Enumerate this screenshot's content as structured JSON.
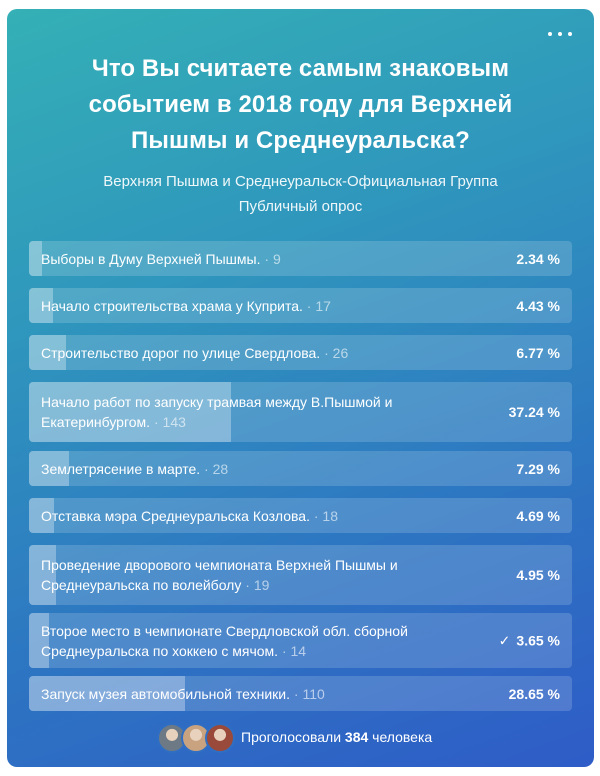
{
  "poll": {
    "title": "Что Вы считаете самым знаковым\nсобытием в 2018 году для Верхней\nПышмы и Среднеуральска?",
    "author": "Верхняя Пышма и Среднеуральск-Официальная Группа",
    "type": "Публичный опрос",
    "menu_icon": "more-dots-icon",
    "options": [
      {
        "text": "Выборы в Думу Верхней Пышмы.",
        "count": "9",
        "percent": "2.34 %",
        "fraction": 0.0234,
        "checked": false
      },
      {
        "text": "Начало строительства храма у Куприта.",
        "count": "17",
        "percent": "4.43 %",
        "fraction": 0.0443,
        "checked": false
      },
      {
        "text": "Строительство дорог по улице Свердлова.",
        "count": "26",
        "percent": "6.77 %",
        "fraction": 0.0677,
        "checked": false
      },
      {
        "text": "Начало работ по запуску трамвая между В.Пышмой и Екатеринбургом.",
        "count": "143",
        "percent": "37.24 %",
        "fraction": 0.3724,
        "checked": false
      },
      {
        "text": "Землетрясение в марте.",
        "count": "28",
        "percent": "7.29 %",
        "fraction": 0.0729,
        "checked": false
      },
      {
        "text": "Отставка мэра Среднеуральска Козлова.",
        "count": "18",
        "percent": "4.69 %",
        "fraction": 0.0469,
        "checked": false
      },
      {
        "text": "Проведение дворового чемпионата Верхней Пышмы и Среднеуральска по волейболу",
        "count": "19",
        "percent": "4.95 %",
        "fraction": 0.0495,
        "checked": false
      },
      {
        "text": "Второе место в чемпионате Свердловской обл. сборной Среднеуральска по хоккею с мячом.",
        "count": "14",
        "percent": "3.65 %",
        "fraction": 0.0365,
        "checked": true
      },
      {
        "text": "Запуск музея автомобильной техники.",
        "count": "110",
        "percent": "28.65 %",
        "fraction": 0.2865,
        "checked": false
      }
    ],
    "footer": {
      "prefix": "Проголосовали",
      "total": "384",
      "suffix": "человека",
      "avatar_colors": [
        "#6d7a86",
        "#c9a27f",
        "#9a4a3a"
      ]
    }
  }
}
